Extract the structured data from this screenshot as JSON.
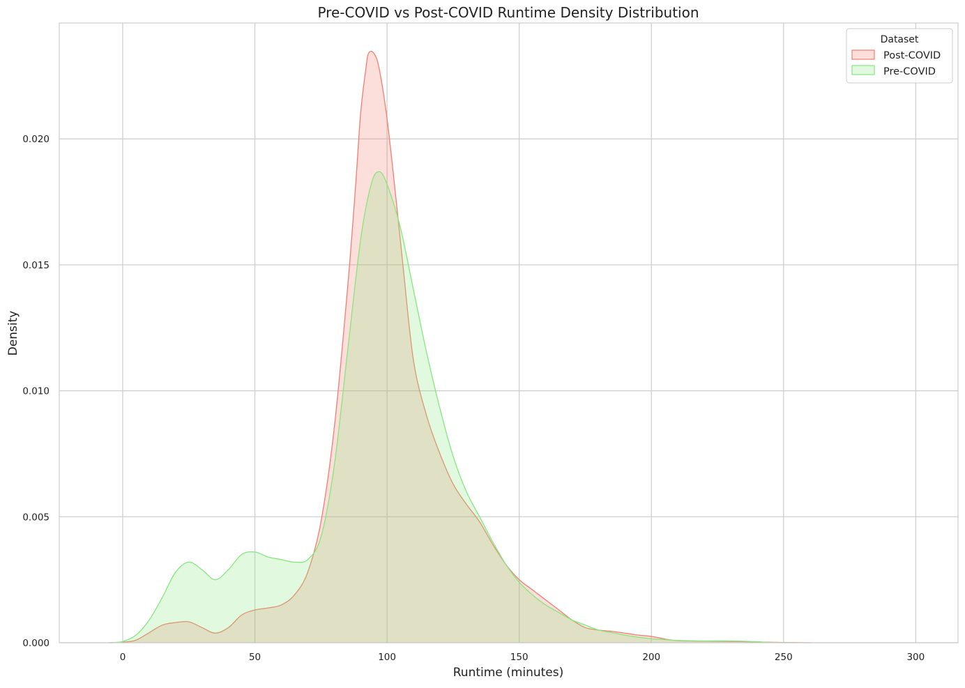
{
  "chart_data": {
    "type": "area",
    "title": "Pre-COVID vs Post-COVID Runtime Density Distribution",
    "xlabel": "Runtime (minutes)",
    "ylabel": "Density",
    "xlim": [
      -24,
      316
    ],
    "ylim": [
      0,
      0.0246
    ],
    "x_ticks": [
      0,
      50,
      100,
      150,
      200,
      250,
      300
    ],
    "x_tick_labels": [
      "0",
      "50",
      "100",
      "150",
      "200",
      "250",
      "300"
    ],
    "y_ticks": [
      0,
      0.005,
      0.01,
      0.015,
      0.02
    ],
    "y_tick_labels": [
      "0.000",
      "0.005",
      "0.010",
      "0.015",
      "0.020"
    ],
    "grid": true,
    "legend": {
      "title": "Dataset",
      "placement": "top-right"
    },
    "series": [
      {
        "name": "Post-COVID",
        "color": "#f47d6e",
        "fill": "#fcd9d3",
        "points": [
          [
            -5,
            0
          ],
          [
            0,
            2e-05
          ],
          [
            5,
            0.0001
          ],
          [
            10,
            0.0004
          ],
          [
            15,
            0.0007
          ],
          [
            20,
            0.0008
          ],
          [
            25,
            0.00083
          ],
          [
            30,
            0.0006
          ],
          [
            35,
            0.00038
          ],
          [
            40,
            0.0006
          ],
          [
            45,
            0.0011
          ],
          [
            50,
            0.0013
          ],
          [
            55,
            0.00138
          ],
          [
            60,
            0.0015
          ],
          [
            65,
            0.0019
          ],
          [
            70,
            0.0028
          ],
          [
            75,
            0.0048
          ],
          [
            80,
            0.0085
          ],
          [
            85,
            0.014
          ],
          [
            88,
            0.018
          ],
          [
            90,
            0.021
          ],
          [
            92,
            0.0228
          ],
          [
            93,
            0.0234
          ],
          [
            95,
            0.0234
          ],
          [
            97,
            0.0228
          ],
          [
            100,
            0.0208
          ],
          [
            103,
            0.018
          ],
          [
            106,
            0.015
          ],
          [
            110,
            0.0112
          ],
          [
            115,
            0.009
          ],
          [
            120,
            0.0075
          ],
          [
            125,
            0.0063
          ],
          [
            130,
            0.0055
          ],
          [
            135,
            0.0048
          ],
          [
            140,
            0.0039
          ],
          [
            145,
            0.0031
          ],
          [
            150,
            0.0025
          ],
          [
            155,
            0.0021
          ],
          [
            160,
            0.0017
          ],
          [
            165,
            0.0013
          ],
          [
            170,
            0.0009
          ],
          [
            175,
            0.0006
          ],
          [
            180,
            0.0005
          ],
          [
            185,
            0.00045
          ],
          [
            190,
            0.00038
          ],
          [
            195,
            0.0003
          ],
          [
            200,
            0.00025
          ],
          [
            205,
            0.00015
          ],
          [
            210,
            8e-05
          ],
          [
            220,
            6e-05
          ],
          [
            230,
            5e-05
          ],
          [
            240,
            3e-05
          ],
          [
            250,
            1e-05
          ],
          [
            260,
            0
          ]
        ]
      },
      {
        "name": "Pre-COVID",
        "color": "#86e67f",
        "fill": "#e0f8e0",
        "points": [
          [
            -5,
            0
          ],
          [
            0,
            5e-05
          ],
          [
            5,
            0.0003
          ],
          [
            10,
            0.0009
          ],
          [
            15,
            0.0018
          ],
          [
            20,
            0.0028
          ],
          [
            25,
            0.0032
          ],
          [
            30,
            0.0029
          ],
          [
            35,
            0.0025
          ],
          [
            40,
            0.0029
          ],
          [
            45,
            0.0035
          ],
          [
            50,
            0.0036
          ],
          [
            55,
            0.0034
          ],
          [
            60,
            0.0033
          ],
          [
            65,
            0.0032
          ],
          [
            70,
            0.0033
          ],
          [
            75,
            0.0042
          ],
          [
            80,
            0.007
          ],
          [
            85,
            0.0115
          ],
          [
            90,
            0.016
          ],
          [
            94,
            0.0182
          ],
          [
            97,
            0.0187
          ],
          [
            100,
            0.0182
          ],
          [
            105,
            0.0165
          ],
          [
            110,
            0.014
          ],
          [
            115,
            0.0115
          ],
          [
            120,
            0.0093
          ],
          [
            125,
            0.0074
          ],
          [
            130,
            0.006
          ],
          [
            135,
            0.005
          ],
          [
            140,
            0.004
          ],
          [
            145,
            0.0031
          ],
          [
            150,
            0.0024
          ],
          [
            155,
            0.0019
          ],
          [
            160,
            0.0015
          ],
          [
            165,
            0.0012
          ],
          [
            170,
            0.0009
          ],
          [
            175,
            0.0007
          ],
          [
            180,
            0.0005
          ],
          [
            185,
            0.0004
          ],
          [
            190,
            0.0003
          ],
          [
            195,
            0.00022
          ],
          [
            200,
            0.00016
          ],
          [
            205,
            0.00012
          ],
          [
            210,
            9e-05
          ],
          [
            220,
            7e-05
          ],
          [
            230,
            7e-05
          ],
          [
            240,
            4e-05
          ],
          [
            245,
            1e-05
          ],
          [
            255,
            0
          ]
        ]
      }
    ]
  }
}
